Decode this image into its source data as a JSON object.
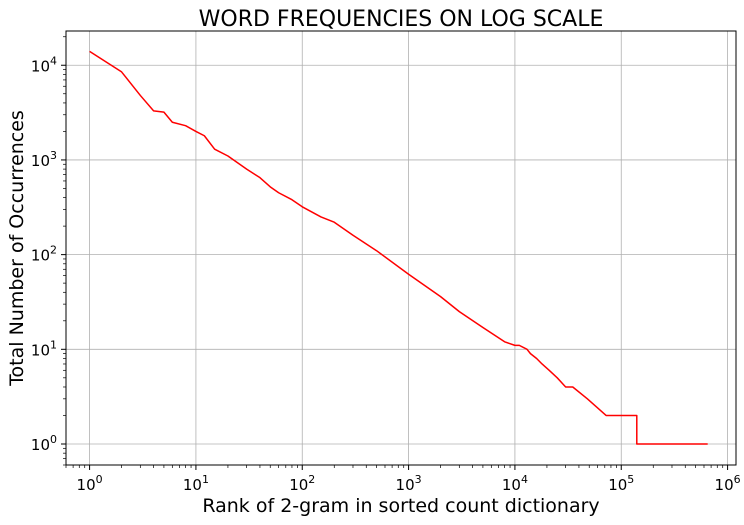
{
  "chart_data": {
    "type": "line",
    "title": "WORD FREQUENCIES ON LOG SCALE",
    "xlabel": "Rank of 2-gram in sorted count dictionary",
    "ylabel": "Total Number of Occurrences",
    "x_scale": "log",
    "y_scale": "log",
    "xlim": [
      0.6,
      1200000
    ],
    "ylim": [
      0.6,
      23000
    ],
    "grid": true,
    "x_ticks": [
      {
        "value": 1,
        "base": "10",
        "exp": "0"
      },
      {
        "value": 10,
        "base": "10",
        "exp": "1"
      },
      {
        "value": 100,
        "base": "10",
        "exp": "2"
      },
      {
        "value": 1000,
        "base": "10",
        "exp": "3"
      },
      {
        "value": 10000,
        "base": "10",
        "exp": "4"
      },
      {
        "value": 100000,
        "base": "10",
        "exp": "5"
      },
      {
        "value": 1000000,
        "base": "10",
        "exp": "6"
      }
    ],
    "y_ticks": [
      {
        "value": 1,
        "base": "10",
        "exp": "0"
      },
      {
        "value": 10,
        "base": "10",
        "exp": "1"
      },
      {
        "value": 100,
        "base": "10",
        "exp": "2"
      },
      {
        "value": 1000,
        "base": "10",
        "exp": "3"
      },
      {
        "value": 10000,
        "base": "10",
        "exp": "4"
      }
    ],
    "series": [
      {
        "color": "#ff0000",
        "x": [
          1,
          2,
          3,
          4,
          5,
          6,
          8,
          10,
          12,
          15,
          20,
          30,
          40,
          50,
          60,
          80,
          100,
          150,
          200,
          300,
          500,
          1000,
          2000,
          3000,
          5000,
          8000,
          10000,
          11000,
          13000,
          13000,
          14000,
          14000,
          16000,
          16000,
          18000,
          18000,
          21000,
          21000,
          25000,
          25000,
          30000,
          30000,
          35000,
          35000,
          48000,
          48000,
          72000,
          72000,
          140000,
          140000,
          650000
        ],
        "y": [
          14000,
          8500,
          4800,
          3300,
          3200,
          2500,
          2300,
          2000,
          1800,
          1300,
          1100,
          800,
          650,
          520,
          450,
          380,
          320,
          250,
          220,
          160,
          110,
          62,
          36,
          25,
          17,
          12,
          11,
          11,
          10,
          10,
          9,
          9,
          8,
          8,
          7,
          7,
          6,
          6,
          5,
          5,
          4,
          4,
          4,
          4,
          3,
          3,
          2,
          2,
          2,
          1,
          1
        ]
      }
    ]
  }
}
